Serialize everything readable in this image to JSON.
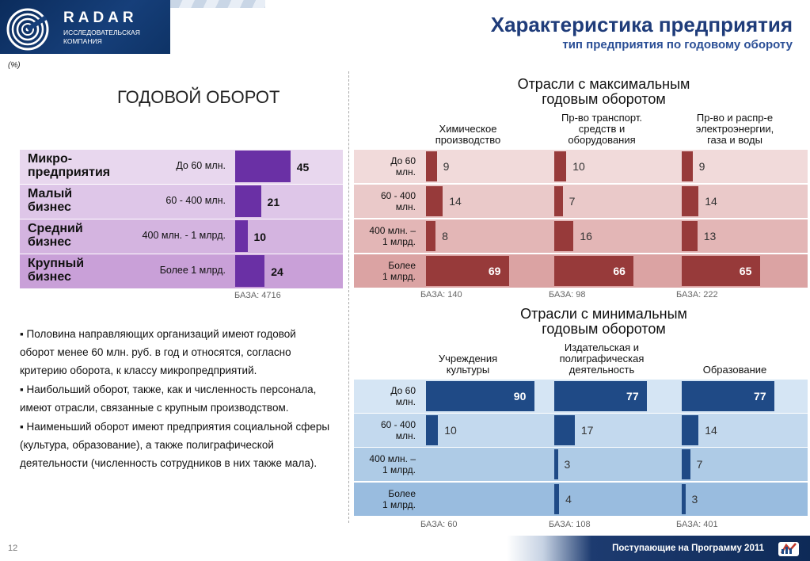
{
  "header": {
    "logo_name": "RADAR",
    "logo_sub1": "ИССЛЕДОВАТЕЛЬСКАЯ",
    "logo_sub2": "КОМПАНИЯ",
    "title": "Характеристика предприятия",
    "subtitle": "тип предприятия по годовому обороту"
  },
  "unit_note": "(%)",
  "colors": {
    "left_bar": "#6a30a5",
    "left_rows": [
      "#e8d7ee",
      "#dec6e8",
      "#d4b4e0",
      "#c9a0d8"
    ],
    "max_bar": "#973a3a",
    "max_rows": [
      "#f1dada",
      "#eac9c9",
      "#e3b6b6",
      "#dba3a3"
    ],
    "min_bar": "#1f4a86",
    "min_rows": [
      "#d5e5f4",
      "#c3d9ee",
      "#aecbe6",
      "#99bcdf"
    ]
  },
  "chart_data": [
    {
      "type": "bar",
      "title": "ГОДОВОЙ ОБОРОТ",
      "categories": [
        "Микро-предприятия",
        "Малый бизнес",
        "Средний бизнес",
        "Крупный бизнес"
      ],
      "category_lines": [
        [
          "Микро-",
          "предприятия"
        ],
        [
          "Малый",
          "бизнес"
        ],
        [
          "Средний",
          "бизнес"
        ],
        [
          "Крупный",
          "бизнес"
        ]
      ],
      "ranges": [
        "До 60 млн.",
        "60 - 400 млн.",
        "400 млн. - 1 млрд.",
        "Более 1 млрд."
      ],
      "values": [
        45,
        21,
        10,
        24
      ],
      "base": "БАЗА: 4716"
    },
    {
      "type": "bar",
      "title": "Отрасли  с максимальным годовым оборотом",
      "title_lines": [
        "Отрасли  с максимальным",
        "годовым оборотом"
      ],
      "categories": [
        "До 60 млн.",
        "60 - 400 млн.",
        "400 млн. – 1 млрд.",
        "Более 1 млрд."
      ],
      "category_lines": [
        [
          "До 60",
          "млн."
        ],
        [
          "60 - 400",
          "млн."
        ],
        [
          "400 млн. –",
          "1 млрд."
        ],
        [
          "Более",
          "1 млрд."
        ]
      ],
      "series": [
        {
          "name": "Химическое производство",
          "name_lines": [
            "Химическое",
            "производство"
          ],
          "values": [
            9,
            14,
            8,
            69
          ],
          "base": "БАЗА: 140"
        },
        {
          "name": "Пр-во транспорт. средств и оборудования",
          "name_lines": [
            "Пр-во транспорт.",
            "средств и",
            "оборудования"
          ],
          "values": [
            10,
            7,
            16,
            66
          ],
          "base": "БАЗА: 98"
        },
        {
          "name": "Пр-во и распр-е электроэнергии, газа и воды",
          "name_lines": [
            "Пр-во и распр-е",
            "электроэнергии,",
            "газа и воды"
          ],
          "values": [
            9,
            14,
            13,
            65
          ],
          "base": "БАЗА: 222"
        }
      ]
    },
    {
      "type": "bar",
      "title": "Отрасли  с минимальным годовым оборотом",
      "title_lines": [
        "Отрасли  с минимальным",
        "годовым оборотом"
      ],
      "categories": [
        "До 60 млн.",
        "60 - 400 млн.",
        "400 млн. – 1 млрд.",
        "Более 1 млрд."
      ],
      "category_lines": [
        [
          "До 60",
          "млн."
        ],
        [
          "60 - 400",
          "млн."
        ],
        [
          "400 млн. –",
          "1 млрд."
        ],
        [
          "Более",
          "1 млрд."
        ]
      ],
      "series": [
        {
          "name": "Учреждения культуры",
          "name_lines": [
            "Учреждения",
            "культуры"
          ],
          "values": [
            90,
            10,
            null,
            null
          ],
          "base": "БАЗА: 60"
        },
        {
          "name": "Издательская и полиграфическая деятельность",
          "name_lines": [
            "Издательская и",
            "полиграфическая",
            "деятельность"
          ],
          "values": [
            77,
            17,
            3,
            4
          ],
          "base": "БАЗА: 108"
        },
        {
          "name": "Образование",
          "name_lines": [
            "Образование"
          ],
          "values": [
            77,
            14,
            7,
            3
          ],
          "base": "БАЗА: 401"
        }
      ]
    }
  ],
  "bullets": [
    "Половина направляющих организаций имеют годовой оборот менее 60 млн. руб. в год и относятся, согласно критерию оборота, к классу микропредприятий.",
    "Наибольший оборот, также, как и численность персонала, имеют отрасли, связанные с крупным производством.",
    "Наименьший оборот имеют предприятия социальной сферы (культура, образование), а также полиграфической деятельности (численность сотрудников в них также мала)."
  ],
  "footer": {
    "page_number": "12",
    "program": "Поступающие на Программу 2011"
  }
}
